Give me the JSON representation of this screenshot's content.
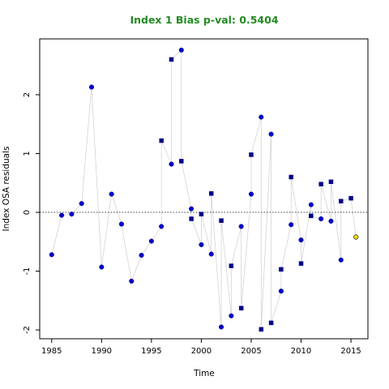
{
  "chart_data": {
    "type": "scatter",
    "title": "Index 1 Bias p-val: 0.5404",
    "xlabel": "Time",
    "ylabel": "Index OSA residuals",
    "xlim": [
      1983.8,
      2016.7
    ],
    "ylim": [
      -2.15,
      2.95
    ],
    "x_ticks": [
      1985,
      1990,
      1995,
      2000,
      2005,
      2010,
      2015
    ],
    "y_ticks": [
      -2,
      -1,
      0,
      1,
      2
    ],
    "reference_line": 0,
    "grid": false,
    "colors": {
      "title": "#228b22",
      "circle_series": "#0000cd",
      "square_series": "#00008b",
      "highlight_point": "#ffd700",
      "connector": "#d3d3d3"
    },
    "series": [
      {
        "marker": "circle",
        "x": [
          1985,
          1986,
          1987,
          1988,
          1989,
          1990,
          1991,
          1992,
          1993,
          1994,
          1995,
          1996,
          1997,
          1998,
          1999,
          2000,
          2001,
          2002,
          2003,
          2004,
          2005,
          2006,
          2007,
          2008,
          2009,
          2010,
          2011,
          2012,
          2013,
          2014
        ],
        "y": [
          -0.72,
          -0.05,
          -0.03,
          0.15,
          2.13,
          -0.93,
          0.31,
          -0.2,
          -1.17,
          -0.73,
          -0.49,
          -0.24,
          0.82,
          2.76,
          0.06,
          -0.55,
          -0.71,
          -1.95,
          -1.76,
          -0.24,
          0.31,
          1.62,
          1.33,
          -1.34,
          -0.21,
          -0.47,
          0.13,
          -0.11,
          -0.15,
          -0.81
        ]
      },
      {
        "marker": "square",
        "x": [
          1996,
          1997,
          1998,
          1999,
          2000,
          2001,
          2002,
          2003,
          2004,
          2005,
          2006,
          2007,
          2008,
          2009,
          2010,
          2011,
          2012,
          2013,
          2014,
          2015
        ],
        "y": [
          1.22,
          2.6,
          0.87,
          -0.11,
          -0.03,
          0.32,
          -0.14,
          -0.91,
          -1.63,
          0.98,
          -1.99,
          -1.88,
          -0.97,
          0.6,
          -0.87,
          -0.06,
          0.48,
          0.52,
          0.19,
          0.24
        ]
      },
      {
        "marker": "circle-highlight",
        "x": [
          2015.5
        ],
        "y": [
          -0.42
        ]
      }
    ]
  }
}
